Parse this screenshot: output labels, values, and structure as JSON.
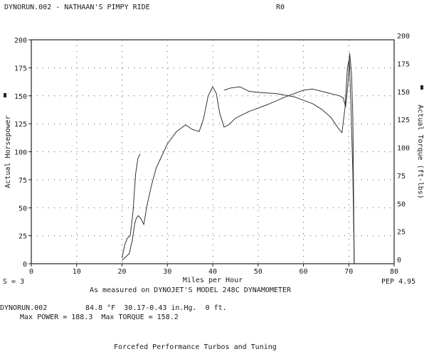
{
  "header": {
    "run_title": "DYNORUN.002 - NATHAAN'S PIMPY RIDE",
    "tag": "R0"
  },
  "chart_data": {
    "type": "line",
    "xlabel": "Miles per Hour",
    "ylabel_left": "Actual Horsepower",
    "ylabel_right": "Actual Torque (ft-lbs)",
    "xlim": [
      0,
      80
    ],
    "ylim": [
      0,
      200
    ],
    "x_ticks": [
      0,
      10,
      20,
      30,
      40,
      50,
      60,
      70,
      80
    ],
    "y_ticks": [
      0,
      25,
      50,
      75,
      100,
      125,
      150,
      175,
      200
    ],
    "grid": true,
    "series": [
      {
        "name": "",
        "color": "#333333",
        "x": [
          20,
          20.8,
          21.6,
          22.3,
          22.8,
          23.2,
          23.6,
          24.2,
          24.8,
          25.5,
          26.5,
          27.5,
          28.5,
          30,
          32,
          34,
          35.5,
          37,
          38,
          39,
          40,
          40.8,
          41.5,
          42.5,
          43.5,
          45,
          48,
          52,
          56,
          60,
          62,
          64,
          66,
          68,
          68.8,
          69.3,
          69.8,
          70.2,
          70.6,
          70.9,
          71.2
        ],
        "y": [
          3,
          6,
          9,
          22,
          36,
          41,
          43,
          40,
          35,
          52,
          70,
          85,
          94,
          107,
          118,
          124,
          120,
          118,
          130,
          150,
          158,
          152,
          135,
          122,
          124,
          130,
          136,
          142,
          149,
          155,
          156,
          154,
          152,
          150,
          148,
          140,
          160,
          188,
          170,
          130,
          0
        ]
      },
      {
        "name": "",
        "color": "#333333",
        "x": [
          20,
          20.6,
          21.2,
          21.8,
          22.4,
          23,
          23.5,
          24
        ],
        "y": [
          5,
          17,
          23,
          25,
          45,
          80,
          94,
          98
        ]
      },
      {
        "name": "",
        "color": "#333333",
        "x": [
          42.5,
          44,
          46,
          48,
          50,
          54,
          58,
          62,
          64,
          66,
          67.5,
          68.5,
          69.2,
          69.7,
          70.1,
          70.5,
          70.9,
          71.2
        ],
        "y": [
          155,
          157,
          158,
          154,
          153,
          152,
          149,
          143,
          138,
          131,
          122,
          117,
          140,
          175,
          183,
          140,
          80,
          0
        ]
      }
    ]
  },
  "footer": {
    "s_value": "S = 3",
    "pep": "PEP 4.95",
    "measured": "As measured on DYNOJET'S MODEL 248C DYNAMOMETER",
    "run_file": "DYNORUN.002",
    "conditions": "84.8 °F  30.17-0.43 in.Hg.  0 ft.",
    "max_line": "Max POWER = 188.3  Max TORQUE = 158.2",
    "shop": "Forcefed Performance Turbos and Tuning"
  }
}
